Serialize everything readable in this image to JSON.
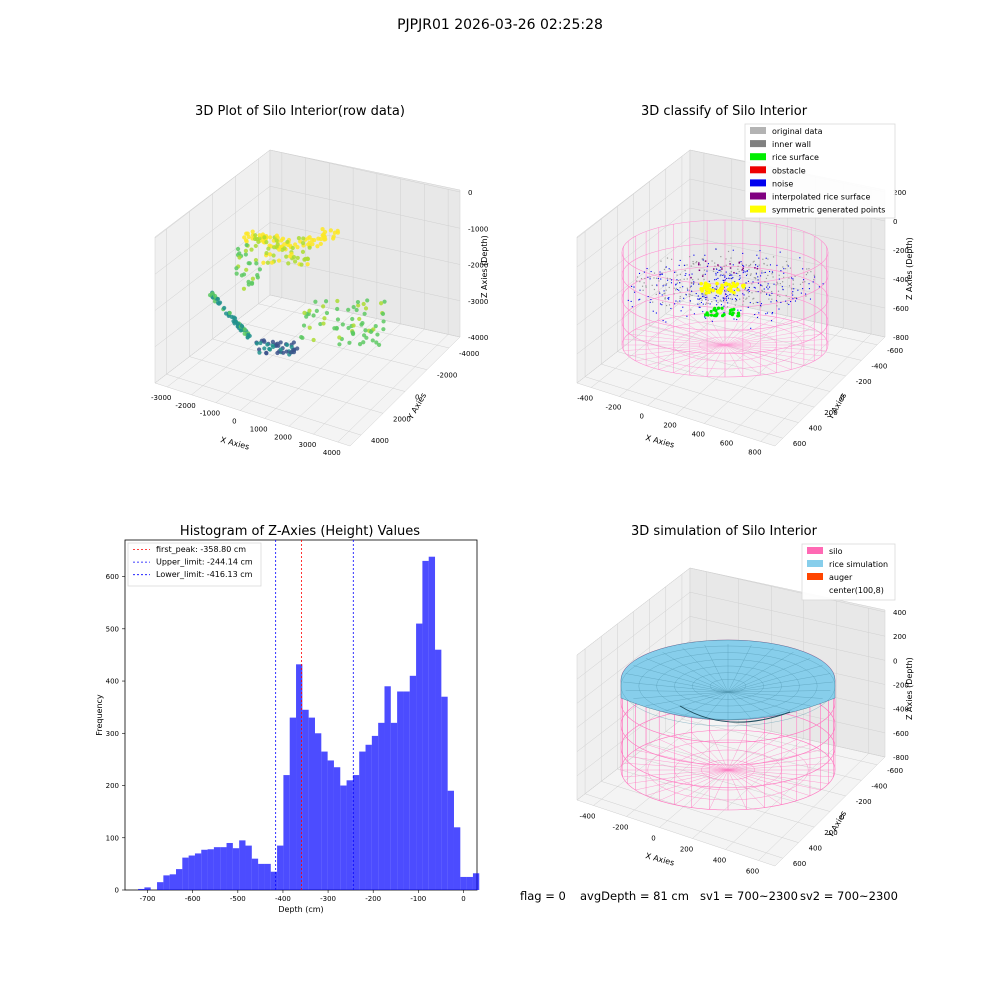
{
  "suptitle": "PJPJR01 2026-03-26 02:25:28",
  "panels": {
    "raw": {
      "title": "3D Plot of Silo Interior(row data)",
      "xlabel": "X Axies",
      "ylabel": "Y Axies",
      "zlabel": "Z Axies (Depth)",
      "xticks": [
        "-3000",
        "-2000",
        "-1000",
        "0",
        "1000",
        "2000",
        "3000",
        "4000"
      ],
      "yticks": [
        "-4000",
        "-2000",
        "0",
        "2000",
        "4000"
      ],
      "zticks": [
        "0",
        "-1000",
        "-2000",
        "-3000",
        "-4000"
      ]
    },
    "classify": {
      "title": "3D classify of Silo Interior",
      "xlabel": "X Axies",
      "ylabel": "Y Axies",
      "zlabel": "Z Axies (Depth)",
      "xticks": [
        "-400",
        "-200",
        "0",
        "200",
        "400",
        "600",
        "800"
      ],
      "yticks": [
        "-600",
        "-400",
        "-200",
        "0",
        "200",
        "400",
        "600"
      ],
      "zticks": [
        "200",
        "0",
        "-200",
        "-400",
        "-600",
        "-800"
      ],
      "legend": [
        {
          "label": "original data",
          "color": "#b3b3b3"
        },
        {
          "label": "inner wall",
          "color": "#808080"
        },
        {
          "label": "rice surface",
          "color": "#00ee00"
        },
        {
          "label": "obstacle",
          "color": "#ee0000"
        },
        {
          "label": "noise",
          "color": "#0000ee"
        },
        {
          "label": "interpolated rice surface",
          "color": "#800080"
        },
        {
          "label": "symmetric generated points",
          "color": "#ffff00"
        }
      ]
    },
    "simulation": {
      "title": "3D simulation of Silo Interior",
      "xlabel": "X Axies",
      "ylabel": "Y Axies",
      "zlabel": "Z Axies (Depth)",
      "xticks": [
        "-400",
        "-200",
        "0",
        "200",
        "400",
        "600"
      ],
      "yticks": [
        "-600",
        "-400",
        "-200",
        "0",
        "200",
        "400",
        "600"
      ],
      "zticks": [
        "400",
        "200",
        "0",
        "-200",
        "-400",
        "-600",
        "-800"
      ],
      "legend": [
        {
          "label": "silo",
          "color": "#ff69b4"
        },
        {
          "label": "rice simulation",
          "color": "#87ceeb"
        },
        {
          "label": "auger",
          "color": "#ff4500"
        },
        {
          "label": "center(100,8)",
          "color": "#ffffff"
        }
      ]
    }
  },
  "footer": {
    "flag": "flag = 0",
    "avg_depth": "avgDepth = 81 cm",
    "sv1": "sv1 = 700~2300",
    "sv2": "sv2 = 700~2300"
  },
  "chart_data": [
    {
      "type": "scatter",
      "title": "3D Plot of Silo Interior(row data)",
      "xlabel": "X Axies",
      "ylabel": "Y Axies",
      "zlabel": "Z Axies (Depth)",
      "xlim": [
        -3000,
        4000
      ],
      "ylim": [
        -4000,
        4000
      ],
      "zlim": [
        -4000,
        0
      ]
    },
    {
      "type": "scatter",
      "title": "3D classify of Silo Interior",
      "xlabel": "X Axies",
      "ylabel": "Y Axies",
      "zlabel": "Z Axies (Depth)",
      "xlim": [
        -400,
        800
      ],
      "ylim": [
        -600,
        600
      ],
      "zlim": [
        -800,
        200
      ],
      "series": [
        {
          "name": "original data"
        },
        {
          "name": "inner wall"
        },
        {
          "name": "rice surface"
        },
        {
          "name": "obstacle"
        },
        {
          "name": "noise"
        },
        {
          "name": "interpolated rice surface"
        },
        {
          "name": "symmetric generated points"
        }
      ]
    },
    {
      "type": "bar",
      "title": "Histogram of Z-Axies (Height) Values",
      "xlabel": "Depth (cm)",
      "ylabel": "Frequency",
      "xlim": [
        -750,
        30
      ],
      "ylim": [
        0,
        670
      ],
      "xticks": [
        -700,
        -600,
        -500,
        -400,
        -300,
        -200,
        -100,
        0
      ],
      "yticks": [
        0,
        100,
        200,
        300,
        400,
        500,
        600
      ],
      "bin_width": 14,
      "bin_start": -721,
      "values": [
        2,
        5,
        0,
        15,
        28,
        30,
        40,
        62,
        66,
        70,
        77,
        78,
        82,
        82,
        90,
        80,
        95,
        85,
        60,
        50,
        50,
        35,
        85,
        220,
        330,
        432,
        345,
        330,
        300,
        265,
        248,
        235,
        200,
        210,
        220,
        265,
        278,
        295,
        320,
        390,
        320,
        380,
        380,
        410,
        510,
        630,
        638,
        460,
        370,
        190,
        120,
        25,
        25,
        32
      ],
      "lines": [
        {
          "label": "first_peak: -358.80 cm",
          "value": -358.8,
          "color": "#ff0000"
        },
        {
          "label": "Upper_limit: -244.14 cm",
          "value": -244.14,
          "color": "#0000ff"
        },
        {
          "label": "Lower_limit: -416.13 cm",
          "value": -416.13,
          "color": "#0000ff"
        }
      ]
    },
    {
      "type": "area",
      "title": "3D simulation of Silo Interior",
      "xlabel": "X Axies",
      "ylabel": "Y Axies",
      "zlabel": "Z Axies (Depth)",
      "xlim": [
        -400,
        600
      ],
      "ylim": [
        -600,
        600
      ],
      "zlim": [
        -800,
        400
      ],
      "series": [
        {
          "name": "silo"
        },
        {
          "name": "rice simulation"
        },
        {
          "name": "auger"
        },
        {
          "name": "center(100,8)"
        }
      ]
    }
  ]
}
